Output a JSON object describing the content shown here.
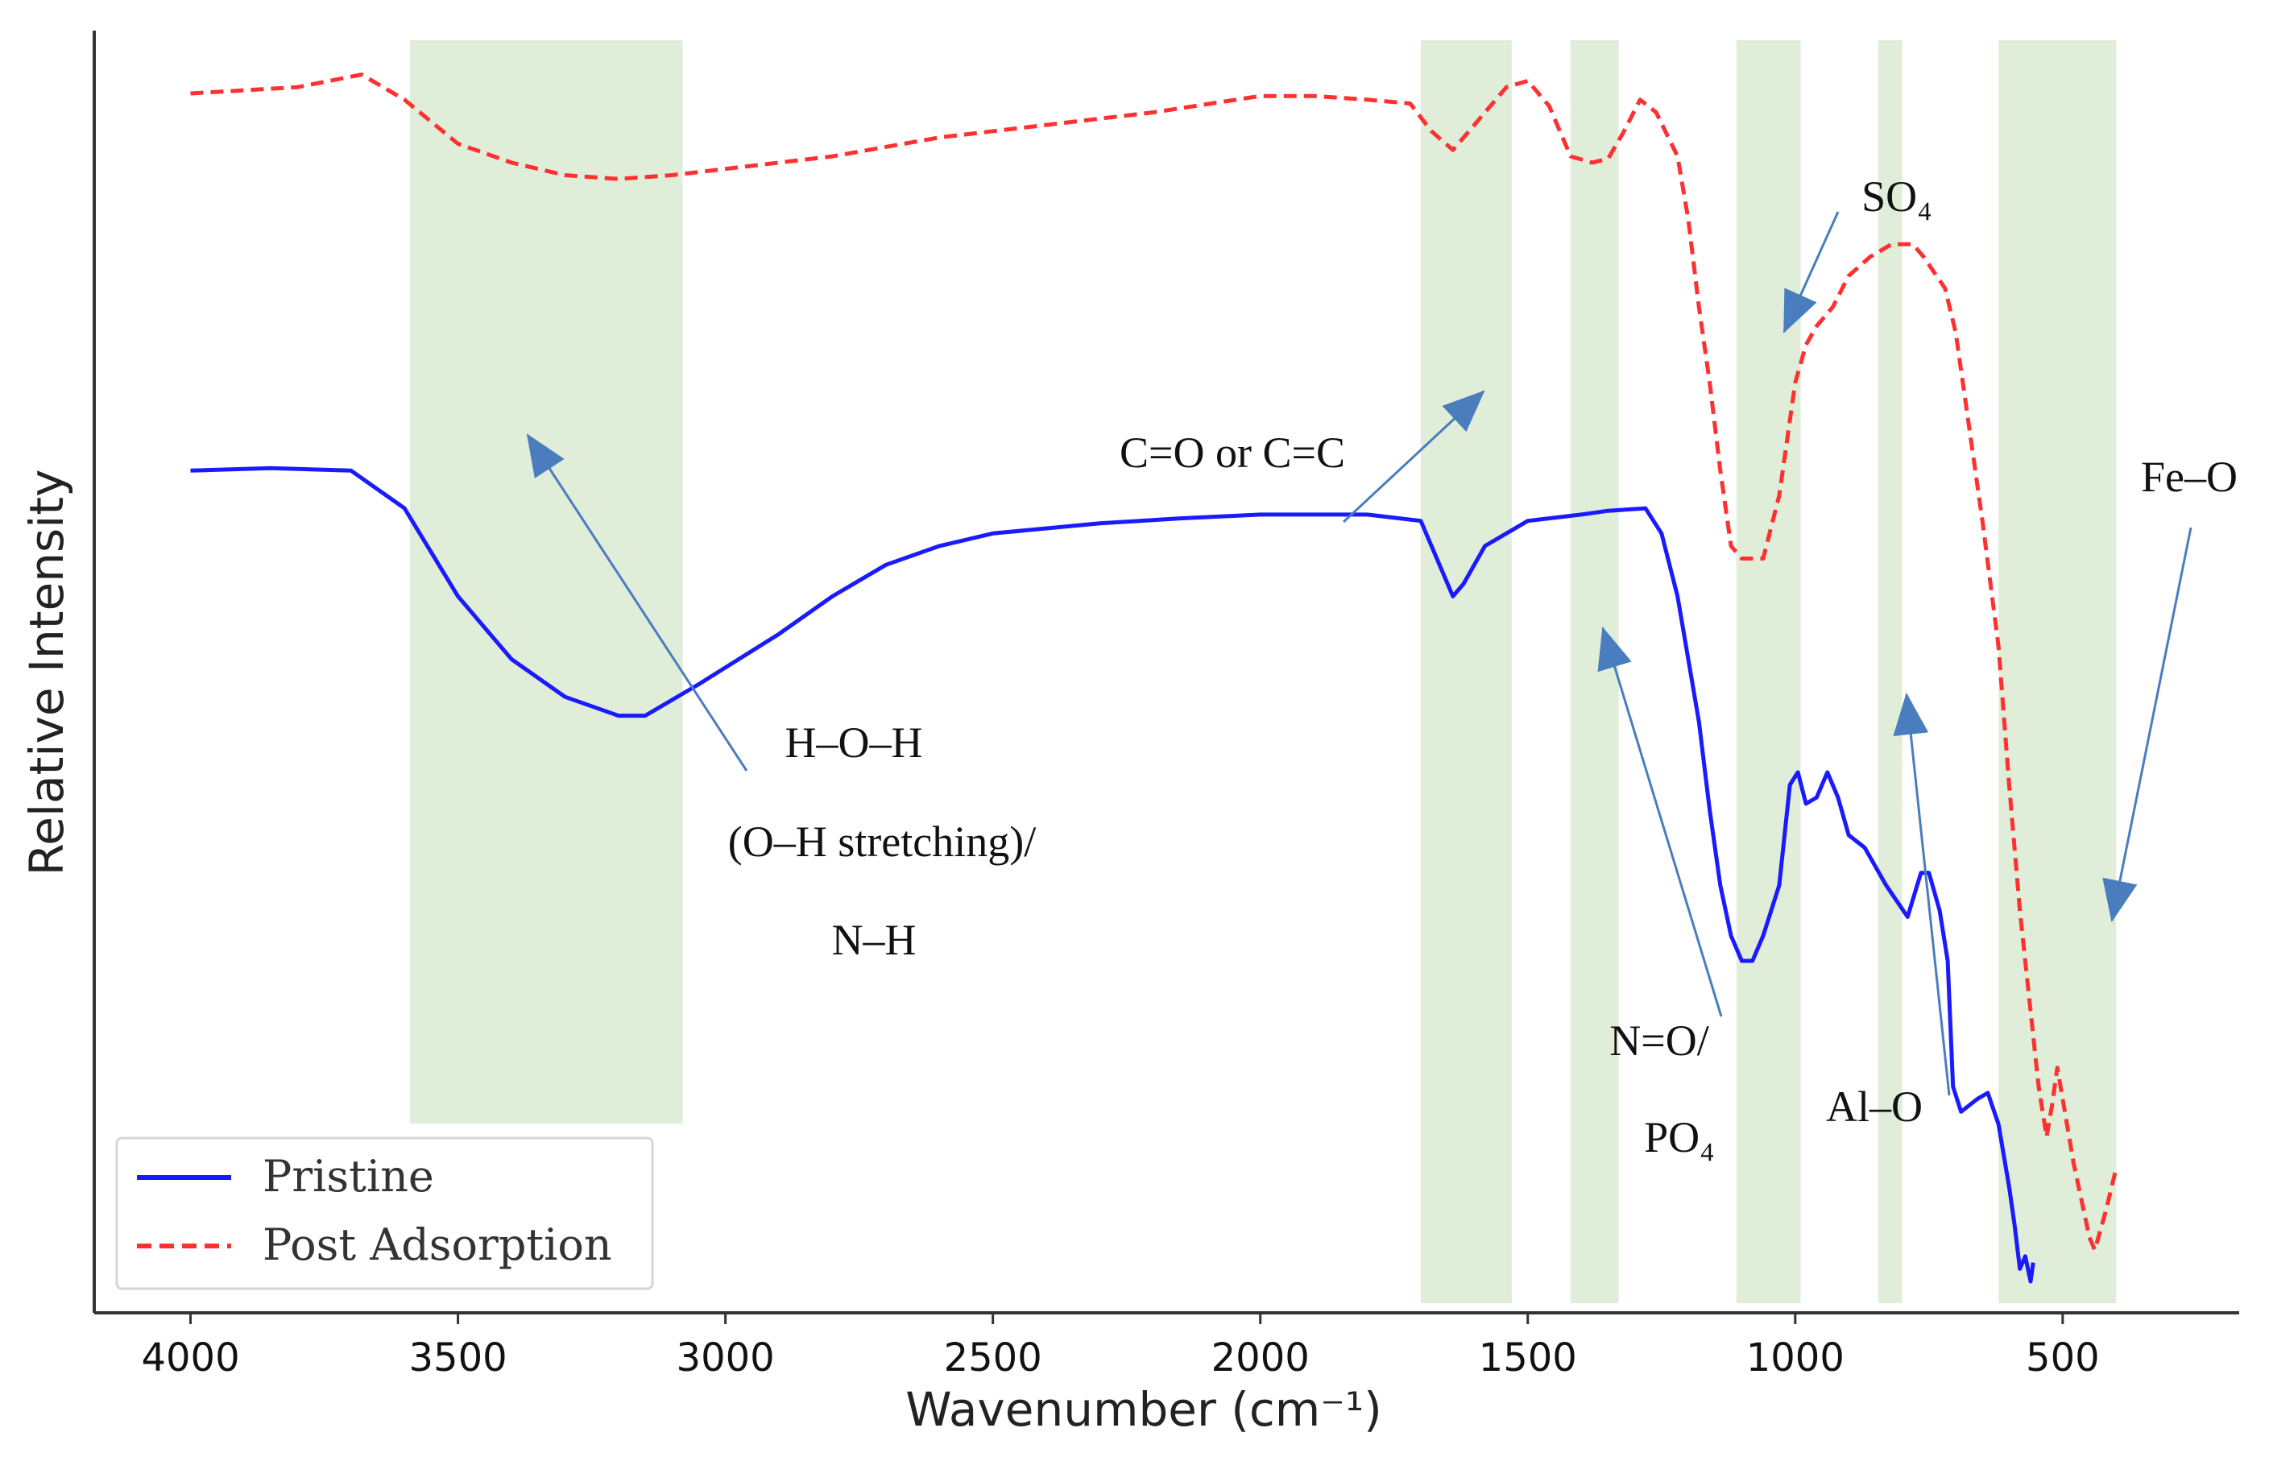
{
  "chart_data": {
    "type": "line",
    "xlabel": "Wavenumber (cm⁻¹)",
    "ylabel": "Relative Intensity",
    "xlim": [
      4180,
      170
    ],
    "ylim": [
      -0.2,
      10
    ],
    "xticks": [
      4000,
      3500,
      3000,
      2500,
      2000,
      1500,
      1000,
      500
    ],
    "grid": false,
    "legend": {
      "position": "bottom-left",
      "entries": [
        {
          "name": "Pristine",
          "color": "#1a1aff",
          "style": "solid"
        },
        {
          "name": "Post Adsorption",
          "color": "#ff3030",
          "style": "dashed"
        }
      ]
    },
    "bands": [
      {
        "label": "H–O–H / N–H",
        "from": 3590,
        "to": 3080
      },
      {
        "label": "C=O or C=C",
        "from": 1700,
        "to": 1530
      },
      {
        "label": "N=O/PO4",
        "from": 1420,
        "to": 1330
      },
      {
        "label": "SO4",
        "from": 1110,
        "to": 990
      },
      {
        "label": "Al–O",
        "from": 845,
        "to": 800
      },
      {
        "label": "Fe–O",
        "from": 620,
        "to": 400
      }
    ],
    "series": [
      {
        "name": "Pristine",
        "color": "#1a1aff",
        "style": "solid",
        "points": [
          [
            4000,
            6.5
          ],
          [
            3850,
            6.52
          ],
          [
            3700,
            6.5
          ],
          [
            3600,
            6.2
          ],
          [
            3500,
            5.5
          ],
          [
            3400,
            5.0
          ],
          [
            3300,
            4.7
          ],
          [
            3200,
            4.55
          ],
          [
            3150,
            4.55
          ],
          [
            3050,
            4.8
          ],
          [
            2900,
            5.2
          ],
          [
            2800,
            5.5
          ],
          [
            2700,
            5.75
          ],
          [
            2600,
            5.9
          ],
          [
            2500,
            6.0
          ],
          [
            2300,
            6.08
          ],
          [
            2150,
            6.12
          ],
          [
            2000,
            6.15
          ],
          [
            1800,
            6.15
          ],
          [
            1700,
            6.1
          ],
          [
            1680,
            5.9
          ],
          [
            1640,
            5.5
          ],
          [
            1620,
            5.6
          ],
          [
            1580,
            5.9
          ],
          [
            1500,
            6.1
          ],
          [
            1400,
            6.15
          ],
          [
            1350,
            6.18
          ],
          [
            1280,
            6.2
          ],
          [
            1250,
            6.0
          ],
          [
            1220,
            5.5
          ],
          [
            1180,
            4.5
          ],
          [
            1160,
            3.8
          ],
          [
            1140,
            3.2
          ],
          [
            1120,
            2.8
          ],
          [
            1100,
            2.6
          ],
          [
            1080,
            2.6
          ],
          [
            1060,
            2.8
          ],
          [
            1030,
            3.2
          ],
          [
            1010,
            4.0
          ],
          [
            995,
            4.1
          ],
          [
            980,
            3.85
          ],
          [
            960,
            3.9
          ],
          [
            940,
            4.1
          ],
          [
            920,
            3.9
          ],
          [
            900,
            3.6
          ],
          [
            870,
            3.5
          ],
          [
            830,
            3.2
          ],
          [
            790,
            2.95
          ],
          [
            765,
            3.3
          ],
          [
            750,
            3.3
          ],
          [
            730,
            3.0
          ],
          [
            715,
            2.6
          ],
          [
            705,
            1.6
          ],
          [
            690,
            1.4
          ],
          [
            660,
            1.5
          ],
          [
            640,
            1.55
          ],
          [
            620,
            1.3
          ],
          [
            600,
            0.8
          ],
          [
            590,
            0.5
          ],
          [
            580,
            0.15
          ],
          [
            570,
            0.25
          ],
          [
            560,
            0.05
          ],
          [
            555,
            0.2
          ]
        ]
      },
      {
        "name": "Post Adsorption",
        "color": "#ff3030",
        "style": "dashed",
        "points": [
          [
            4000,
            9.5
          ],
          [
            3800,
            9.55
          ],
          [
            3680,
            9.65
          ],
          [
            3600,
            9.45
          ],
          [
            3500,
            9.1
          ],
          [
            3400,
            8.95
          ],
          [
            3300,
            8.85
          ],
          [
            3200,
            8.82
          ],
          [
            3100,
            8.85
          ],
          [
            3000,
            8.9
          ],
          [
            2800,
            9.0
          ],
          [
            2600,
            9.15
          ],
          [
            2400,
            9.25
          ],
          [
            2200,
            9.35
          ],
          [
            2000,
            9.48
          ],
          [
            1900,
            9.48
          ],
          [
            1800,
            9.45
          ],
          [
            1720,
            9.42
          ],
          [
            1680,
            9.2
          ],
          [
            1640,
            9.05
          ],
          [
            1600,
            9.25
          ],
          [
            1540,
            9.55
          ],
          [
            1500,
            9.6
          ],
          [
            1460,
            9.4
          ],
          [
            1420,
            9.0
          ],
          [
            1380,
            8.95
          ],
          [
            1350,
            8.98
          ],
          [
            1320,
            9.2
          ],
          [
            1290,
            9.45
          ],
          [
            1260,
            9.35
          ],
          [
            1220,
            9.0
          ],
          [
            1200,
            8.5
          ],
          [
            1180,
            7.8
          ],
          [
            1160,
            7.2
          ],
          [
            1140,
            6.5
          ],
          [
            1120,
            5.9
          ],
          [
            1100,
            5.8
          ],
          [
            1060,
            5.8
          ],
          [
            1030,
            6.3
          ],
          [
            1000,
            7.2
          ],
          [
            980,
            7.5
          ],
          [
            960,
            7.65
          ],
          [
            930,
            7.8
          ],
          [
            900,
            8.05
          ],
          [
            860,
            8.2
          ],
          [
            820,
            8.3
          ],
          [
            780,
            8.3
          ],
          [
            760,
            8.2
          ],
          [
            720,
            7.95
          ],
          [
            700,
            7.6
          ],
          [
            680,
            7.0
          ],
          [
            650,
            6.1
          ],
          [
            620,
            5.1
          ],
          [
            600,
            4.0
          ],
          [
            580,
            3.0
          ],
          [
            560,
            2.2
          ],
          [
            545,
            1.6
          ],
          [
            530,
            1.2
          ],
          [
            520,
            1.45
          ],
          [
            510,
            1.75
          ],
          [
            500,
            1.5
          ],
          [
            480,
            1.0
          ],
          [
            460,
            0.6
          ],
          [
            450,
            0.4
          ],
          [
            440,
            0.3
          ],
          [
            420,
            0.6
          ],
          [
            400,
            0.95
          ]
        ]
      }
    ],
    "annotations": [
      {
        "id": "hoh",
        "lines": [
          "H–O–H",
          "(O–H stretching)/",
          "N–H"
        ]
      },
      {
        "id": "co",
        "text": "C=O or C=C"
      },
      {
        "id": "no",
        "lines": [
          "N=O/",
          "PO₄"
        ]
      },
      {
        "id": "so4",
        "text": "SO₄"
      },
      {
        "id": "alo",
        "text": "Al–O"
      },
      {
        "id": "feo",
        "text": "Fe–O"
      }
    ]
  }
}
